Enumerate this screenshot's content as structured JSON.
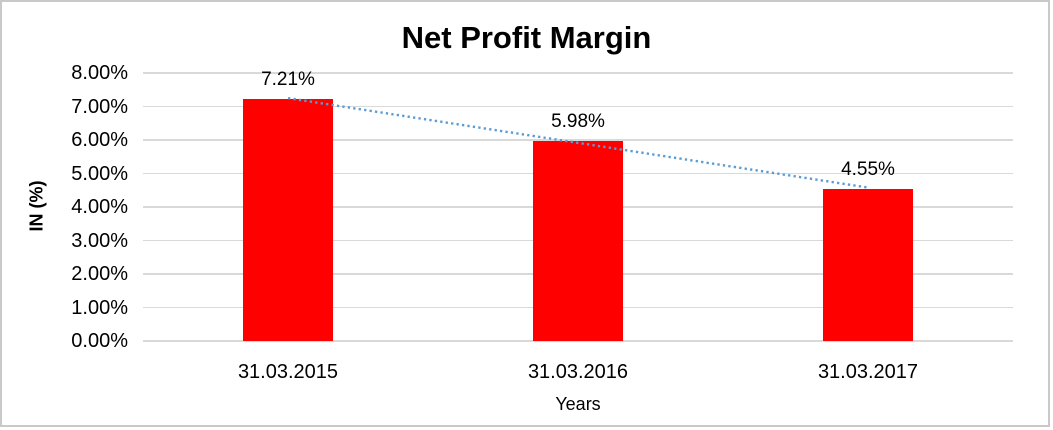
{
  "window": {
    "background": "#ffffff",
    "border_color": "#c9c9c9"
  },
  "chart_data": {
    "type": "bar",
    "title": "Net Profit Margin",
    "xlabel": "Years",
    "ylabel": "IN (%)",
    "categories": [
      "31.03.2015",
      "31.03.2016",
      "31.03.2017"
    ],
    "values": [
      7.21,
      5.98,
      4.55
    ],
    "value_unit": "percent",
    "data_labels": [
      "7.21%",
      "5.98%",
      "4.55%"
    ],
    "ylim": [
      0,
      8
    ],
    "y_tick_labels": [
      "8.00%",
      "7.00%",
      "6.00%",
      "5.00%",
      "4.00%",
      "3.00%",
      "2.00%",
      "1.00%",
      "0.00%"
    ],
    "grid": true,
    "legend": false,
    "bar_color": "#ff0000",
    "gridline_color": "#d9d9d9",
    "text_color": "#000000",
    "trendline": {
      "type": "linear",
      "style": "dotted",
      "color": "#5b9bd5",
      "start_value_pct": 7.25,
      "end_value_pct": 4.58
    }
  }
}
